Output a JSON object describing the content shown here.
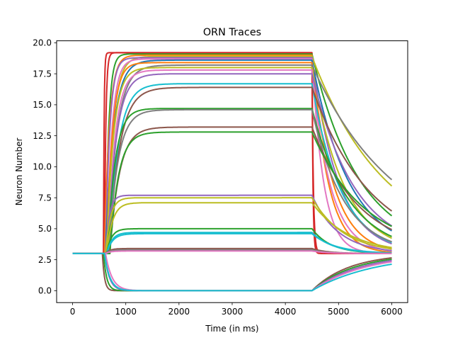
{
  "chart_data": {
    "type": "line",
    "title": "ORN Traces",
    "xlabel": "Time (in ms)",
    "ylabel": "Neuron Number",
    "xlim": [
      -300,
      6300
    ],
    "ylim": [
      -0.96,
      20.16
    ],
    "x_ticks": [
      0,
      1000,
      2000,
      3000,
      4000,
      5000,
      6000
    ],
    "y_ticks": [
      0.0,
      2.5,
      5.0,
      7.5,
      10.0,
      12.5,
      15.0,
      17.5,
      20.0
    ],
    "x_tick_labels": [
      "0",
      "1000",
      "2000",
      "3000",
      "4000",
      "5000",
      "6000"
    ],
    "y_tick_labels": [
      "0.0",
      "2.5",
      "5.0",
      "7.5",
      "10.0",
      "12.5",
      "15.0",
      "17.5",
      "20.0"
    ],
    "grid": false,
    "legend": "none",
    "baseline": 3.0,
    "stimulus_on_ms": 500,
    "stimulus_off_ms": 4500,
    "end_ms": 6000,
    "series": [
      {
        "plateau": 19.2,
        "onset_ms": 580,
        "rise_tau_ms": 12,
        "decay_tau_ms": 18,
        "color": "#d62728"
      },
      {
        "plateau": 19.2,
        "onset_ms": 600,
        "rise_tau_ms": 25,
        "decay_tau_ms": 25,
        "color": "#d62728"
      },
      {
        "plateau": 19.1,
        "onset_ms": 620,
        "rise_tau_ms": 60,
        "decay_tau_ms": 900,
        "color": "#2ca02c"
      },
      {
        "plateau": 19.0,
        "onset_ms": 600,
        "rise_tau_ms": 90,
        "decay_tau_ms": 300,
        "color": "#ff7f0e"
      },
      {
        "plateau": 18.9,
        "onset_ms": 640,
        "rise_tau_ms": 120,
        "decay_tau_ms": 1400,
        "color": "#bcbd22"
      },
      {
        "plateau": 18.8,
        "onset_ms": 620,
        "rise_tau_ms": 80,
        "decay_tau_ms": 500,
        "color": "#9467bd"
      },
      {
        "plateau": 18.7,
        "onset_ms": 640,
        "rise_tau_ms": 100,
        "decay_tau_ms": 220,
        "color": "#e377c2"
      },
      {
        "plateau": 18.6,
        "onset_ms": 620,
        "rise_tau_ms": 150,
        "decay_tau_ms": 700,
        "color": "#1f77b4"
      },
      {
        "plateau": 18.4,
        "onset_ms": 640,
        "rise_tau_ms": 110,
        "decay_tau_ms": 400,
        "color": "#ff7f0e"
      },
      {
        "plateau": 18.2,
        "onset_ms": 660,
        "rise_tau_ms": 170,
        "decay_tau_ms": 1600,
        "color": "#7f7f7f"
      },
      {
        "plateau": 18.0,
        "onset_ms": 640,
        "rise_tau_ms": 130,
        "decay_tau_ms": 600,
        "color": "#bcbd22"
      },
      {
        "plateau": 17.8,
        "onset_ms": 660,
        "rise_tau_ms": 140,
        "decay_tau_ms": 350,
        "color": "#e377c2"
      },
      {
        "plateau": 17.5,
        "onset_ms": 660,
        "rise_tau_ms": 160,
        "decay_tau_ms": 800,
        "color": "#9467bd"
      },
      {
        "plateau": 16.7,
        "onset_ms": 680,
        "rise_tau_ms": 180,
        "decay_tau_ms": 550,
        "color": "#17becf"
      },
      {
        "plateau": 16.4,
        "onset_ms": 680,
        "rise_tau_ms": 200,
        "decay_tau_ms": 1100,
        "color": "#8c564b"
      },
      {
        "plateau": 14.7,
        "onset_ms": 660,
        "rise_tau_ms": 140,
        "decay_tau_ms": 700,
        "color": "#2ca02c"
      },
      {
        "plateau": 14.6,
        "onset_ms": 680,
        "rise_tau_ms": 170,
        "decay_tau_ms": 600,
        "color": "#7f7f7f"
      },
      {
        "plateau": 13.2,
        "onset_ms": 700,
        "rise_tau_ms": 180,
        "decay_tau_ms": 900,
        "color": "#8c564b"
      },
      {
        "plateau": 12.8,
        "onset_ms": 700,
        "rise_tau_ms": 160,
        "decay_tau_ms": 1000,
        "color": "#2ca02c"
      },
      {
        "plateau": 7.7,
        "onset_ms": 620,
        "rise_tau_ms": 70,
        "decay_tau_ms": 500,
        "color": "#9467bd"
      },
      {
        "plateau": 7.5,
        "onset_ms": 620,
        "rise_tau_ms": 90,
        "decay_tau_ms": 600,
        "color": "#bcbd22"
      },
      {
        "plateau": 7.1,
        "onset_ms": 640,
        "rise_tau_ms": 110,
        "decay_tau_ms": 700,
        "color": "#bcbd22"
      },
      {
        "plateau": 5.0,
        "onset_ms": 640,
        "rise_tau_ms": 90,
        "decay_tau_ms": 350,
        "color": "#2ca02c"
      },
      {
        "plateau": 4.7,
        "onset_ms": 640,
        "rise_tau_ms": 100,
        "decay_tau_ms": 400,
        "color": "#17becf"
      },
      {
        "plateau": 4.6,
        "onset_ms": 640,
        "rise_tau_ms": 110,
        "decay_tau_ms": 450,
        "color": "#17becf"
      },
      {
        "plateau": 3.4,
        "onset_ms": 620,
        "rise_tau_ms": 80,
        "decay_tau_ms": 300,
        "color": "#8c564b"
      },
      {
        "plateau": 3.3,
        "onset_ms": 620,
        "rise_tau_ms": 90,
        "decay_tau_ms": 300,
        "color": "#7f7f7f"
      },
      {
        "plateau": 3.2,
        "onset_ms": 620,
        "rise_tau_ms": 90,
        "decay_tau_ms": 300,
        "color": "#e377c2"
      },
      {
        "plateau": 0.0,
        "onset_ms": 560,
        "rise_tau_ms": 40,
        "decay_tau_ms": 700,
        "color": "#8c564b"
      },
      {
        "plateau": 0.0,
        "onset_ms": 580,
        "rise_tau_ms": 60,
        "decay_tau_ms": 800,
        "color": "#2ca02c"
      },
      {
        "plateau": 0.0,
        "onset_ms": 600,
        "rise_tau_ms": 90,
        "decay_tau_ms": 900,
        "color": "#9467bd"
      },
      {
        "plateau": 0.0,
        "onset_ms": 620,
        "rise_tau_ms": 120,
        "decay_tau_ms": 1000,
        "color": "#e377c2"
      },
      {
        "plateau": 0.0,
        "onset_ms": 600,
        "rise_tau_ms": 100,
        "decay_tau_ms": 1200,
        "color": "#17becf"
      }
    ]
  }
}
